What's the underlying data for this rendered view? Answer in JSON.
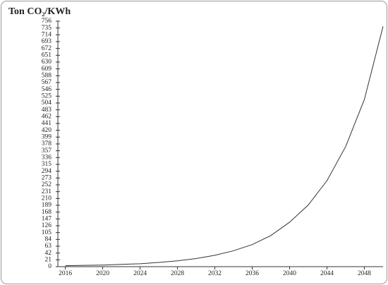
{
  "chart_data": {
    "type": "line",
    "title": "Ton CO₂/KWh",
    "x": [
      2016,
      2018,
      2020,
      2022,
      2024,
      2026,
      2028,
      2030,
      2032,
      2034,
      2036,
      2038,
      2040,
      2042,
      2044,
      2046,
      2048,
      2050
    ],
    "values": [
      3,
      4,
      5,
      7,
      9,
      13,
      18,
      25,
      35,
      49,
      68,
      96,
      137,
      190,
      265,
      370,
      515,
      740
    ],
    "color": "#333333",
    "xlim": [
      2015.2,
      2050
    ],
    "xticks": [
      2016,
      2020,
      2024,
      2028,
      2032,
      2036,
      2040,
      2044,
      2048
    ],
    "ylim": [
      0,
      756
    ],
    "yticks": [
      0,
      21,
      42,
      63,
      84,
      105,
      126,
      147,
      168,
      189,
      210,
      231,
      252,
      273,
      294,
      315,
      336,
      357,
      378,
      399,
      420,
      441,
      462,
      483,
      504,
      525,
      546,
      567,
      588,
      609,
      630,
      651,
      672,
      693,
      714,
      735,
      756
    ],
    "grid": false
  }
}
